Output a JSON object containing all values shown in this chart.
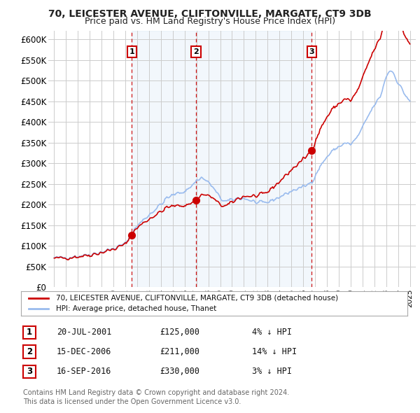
{
  "title": "70, LEICESTER AVENUE, CLIFTONVILLE, MARGATE, CT9 3DB",
  "subtitle": "Price paid vs. HM Land Registry's House Price Index (HPI)",
  "ylabel_ticks": [
    "£0",
    "£50K",
    "£100K",
    "£150K",
    "£200K",
    "£250K",
    "£300K",
    "£350K",
    "£400K",
    "£450K",
    "£500K",
    "£550K",
    "£600K"
  ],
  "ytick_values": [
    0,
    50000,
    100000,
    150000,
    200000,
    250000,
    300000,
    350000,
    400000,
    450000,
    500000,
    550000,
    600000
  ],
  "xlim_start": 1994.5,
  "xlim_end": 2025.5,
  "ylim_min": 0,
  "ylim_max": 620000,
  "sales": [
    {
      "num": 1,
      "date_label": "20-JUL-2001",
      "price": 125000,
      "year": 2001.55,
      "hpi_pct": "4%",
      "direction": "↓"
    },
    {
      "num": 2,
      "date_label": "15-DEC-2006",
      "price": 211000,
      "year": 2006.96,
      "hpi_pct": "14%",
      "direction": "↓"
    },
    {
      "num": 3,
      "date_label": "16-SEP-2016",
      "price": 330000,
      "year": 2016.71,
      "hpi_pct": "3%",
      "direction": "↓"
    }
  ],
  "sale_line_color": "#cc0000",
  "hpi_line_color": "#99bbee",
  "shade_color": "#ddeeff",
  "background_color": "#ffffff",
  "grid_color": "#cccccc",
  "legend_label_sale": "70, LEICESTER AVENUE, CLIFTONVILLE, MARGATE, CT9 3DB (detached house)",
  "legend_label_hpi": "HPI: Average price, detached house, Thanet",
  "footer1": "Contains HM Land Registry data © Crown copyright and database right 2024.",
  "footer2": "This data is licensed under the Open Government Licence v3.0."
}
